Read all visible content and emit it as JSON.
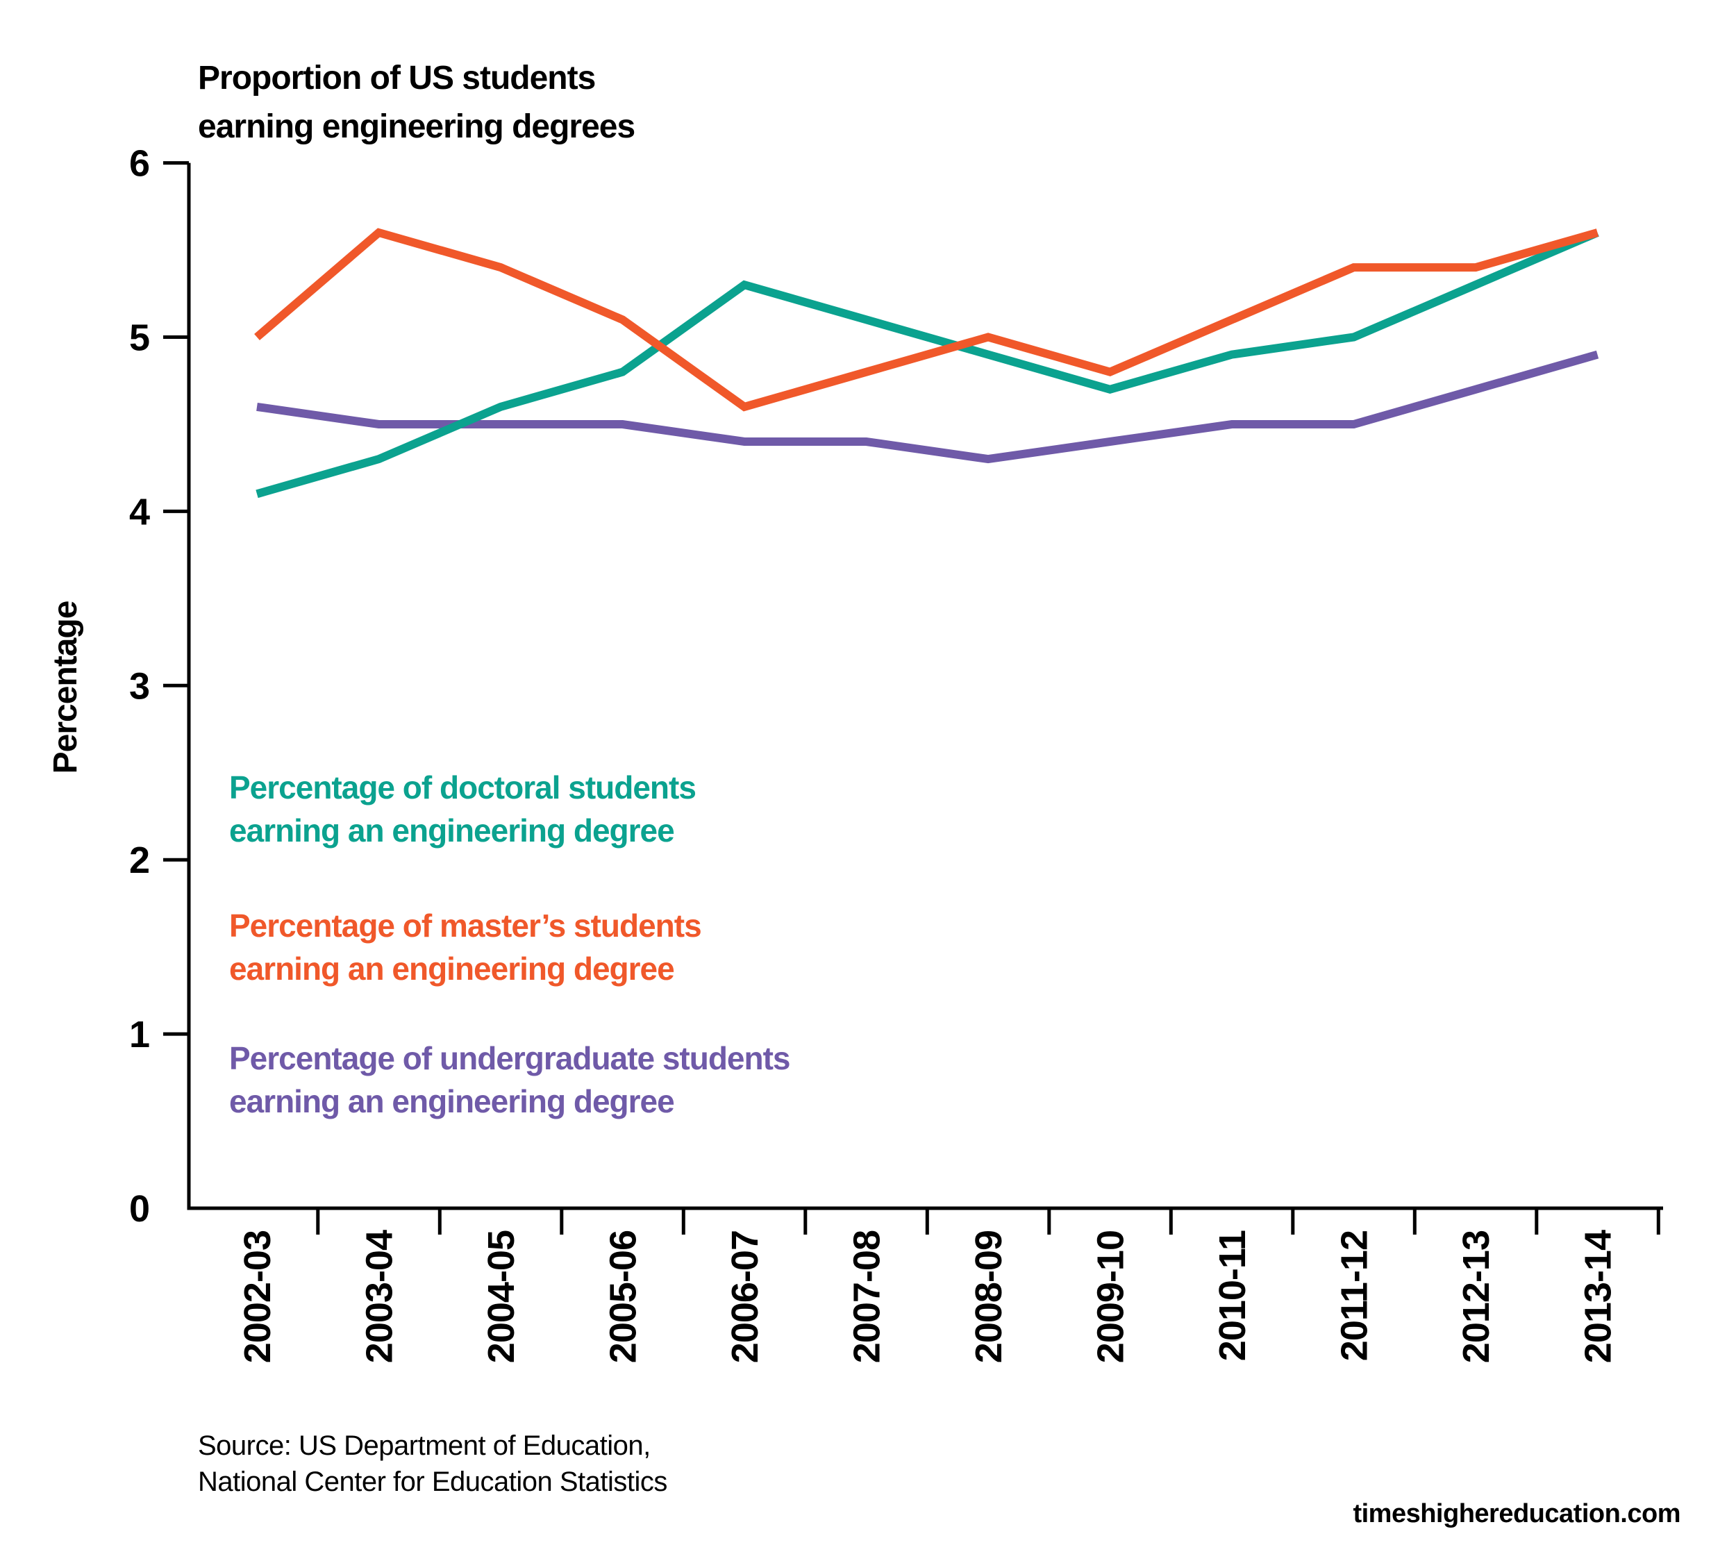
{
  "title": {
    "line1": "Proportion of US students",
    "line2": "earning engineering degrees"
  },
  "y_axis": {
    "label": "Percentage",
    "ticks": [
      0,
      1,
      2,
      3,
      4,
      5,
      6
    ]
  },
  "legend": [
    {
      "key": "doctoral",
      "line1": "Percentage of doctoral students",
      "line2": "earning an engineering degree",
      "color": "#0BA28F"
    },
    {
      "key": "masters",
      "line1": "Percentage of master’s students",
      "line2": "earning an engineering degree",
      "color": "#F0582A"
    },
    {
      "key": "undergraduate",
      "line1": "Percentage of undergraduate students",
      "line2": "earning an engineering degree",
      "color": "#6F5AA8"
    }
  ],
  "source": {
    "line1": "Source: US Department of Education,",
    "line2": "National Center for Education Statistics"
  },
  "watermark": "timeshighereducation.com",
  "colors": {
    "axis": "#000000",
    "doctoral": "#0BA28F",
    "masters": "#F0582A",
    "undergraduate": "#6F5AA8"
  },
  "chart_data": {
    "type": "line",
    "title": "Proportion of US students earning engineering degrees",
    "xlabel": "",
    "ylabel": "Percentage",
    "ylim": [
      0,
      6
    ],
    "yticks": [
      0,
      1,
      2,
      3,
      4,
      5,
      6
    ],
    "grid": false,
    "legend_position": "inside-left-middle",
    "categories": [
      "2002-03",
      "2003-04",
      "2004-05",
      "2005-06",
      "2006-07",
      "2007-08",
      "2008-09",
      "2009-10",
      "2010-11",
      "2011-12",
      "2012-13",
      "2013-14"
    ],
    "series": [
      {
        "key": "doctoral",
        "name": "Percentage of doctoral students earning an engineering degree",
        "color": "#0BA28F",
        "values": [
          4.1,
          4.3,
          4.6,
          4.8,
          5.3,
          5.1,
          4.9,
          4.7,
          4.9,
          5.0,
          5.3,
          5.6
        ]
      },
      {
        "key": "masters",
        "name": "Percentage of master’s students earning an engineering degree",
        "color": "#F0582A",
        "values": [
          5.0,
          5.6,
          5.4,
          5.1,
          4.6,
          4.8,
          5.0,
          4.8,
          5.1,
          5.4,
          5.4,
          5.6
        ]
      },
      {
        "key": "undergraduate",
        "name": "Percentage of undergraduate students earning an engineering degree",
        "color": "#6F5AA8",
        "values": [
          4.6,
          4.5,
          4.5,
          4.5,
          4.4,
          4.4,
          4.3,
          4.4,
          4.5,
          4.5,
          4.7,
          4.9
        ]
      }
    ]
  }
}
